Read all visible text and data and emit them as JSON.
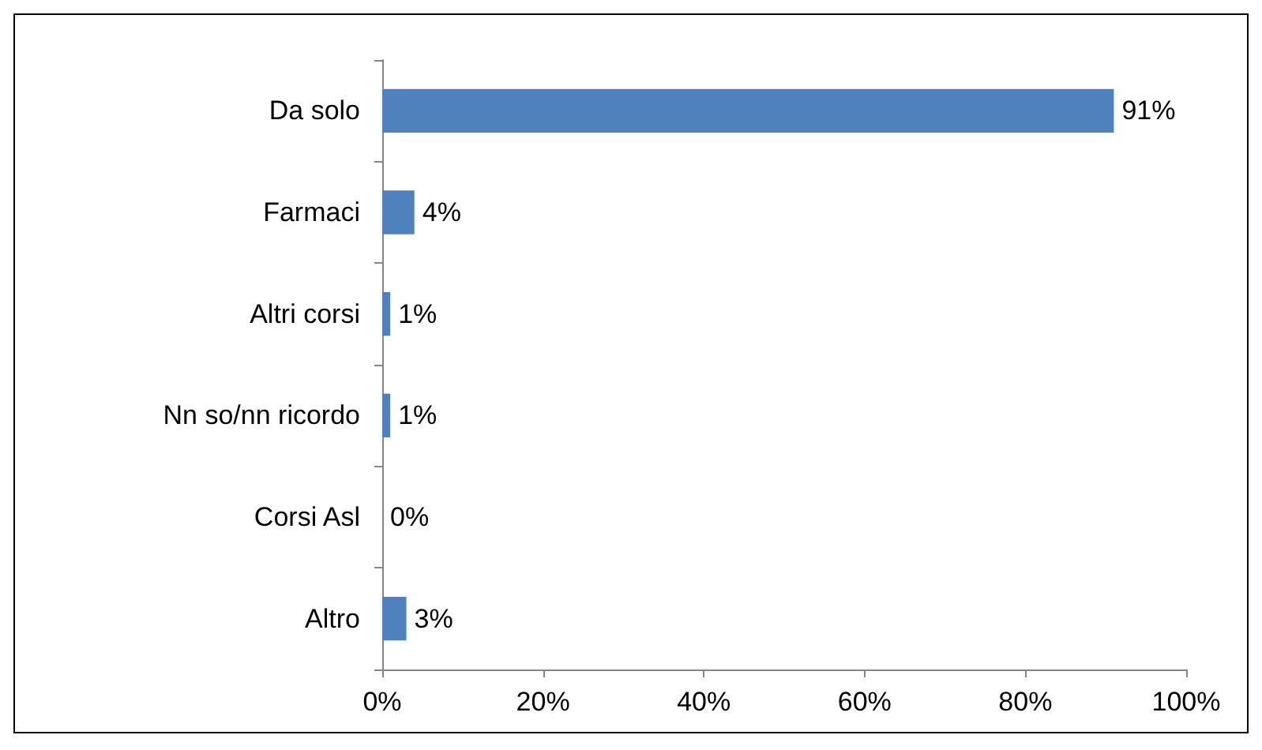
{
  "chart_data": {
    "type": "bar",
    "orientation": "horizontal",
    "categories": [
      "Da solo",
      "Farmaci",
      "Altri corsi",
      "Nn so/nn ricordo",
      "Corsi Asl",
      "Altro"
    ],
    "values": [
      91,
      4,
      1,
      1,
      0,
      3
    ],
    "value_labels": [
      "91%",
      "4%",
      "1%",
      "1%",
      "0%",
      "3%"
    ],
    "color": "#4f81bd",
    "xlim": [
      0,
      100
    ],
    "xticks": [
      {
        "value": 0,
        "label": "0%"
      },
      {
        "value": 20,
        "label": "20%"
      },
      {
        "value": 40,
        "label": "40%"
      },
      {
        "value": 60,
        "label": "60%"
      },
      {
        "value": 80,
        "label": "80%"
      },
      {
        "value": 100,
        "label": "100%"
      }
    ],
    "grid": false
  }
}
